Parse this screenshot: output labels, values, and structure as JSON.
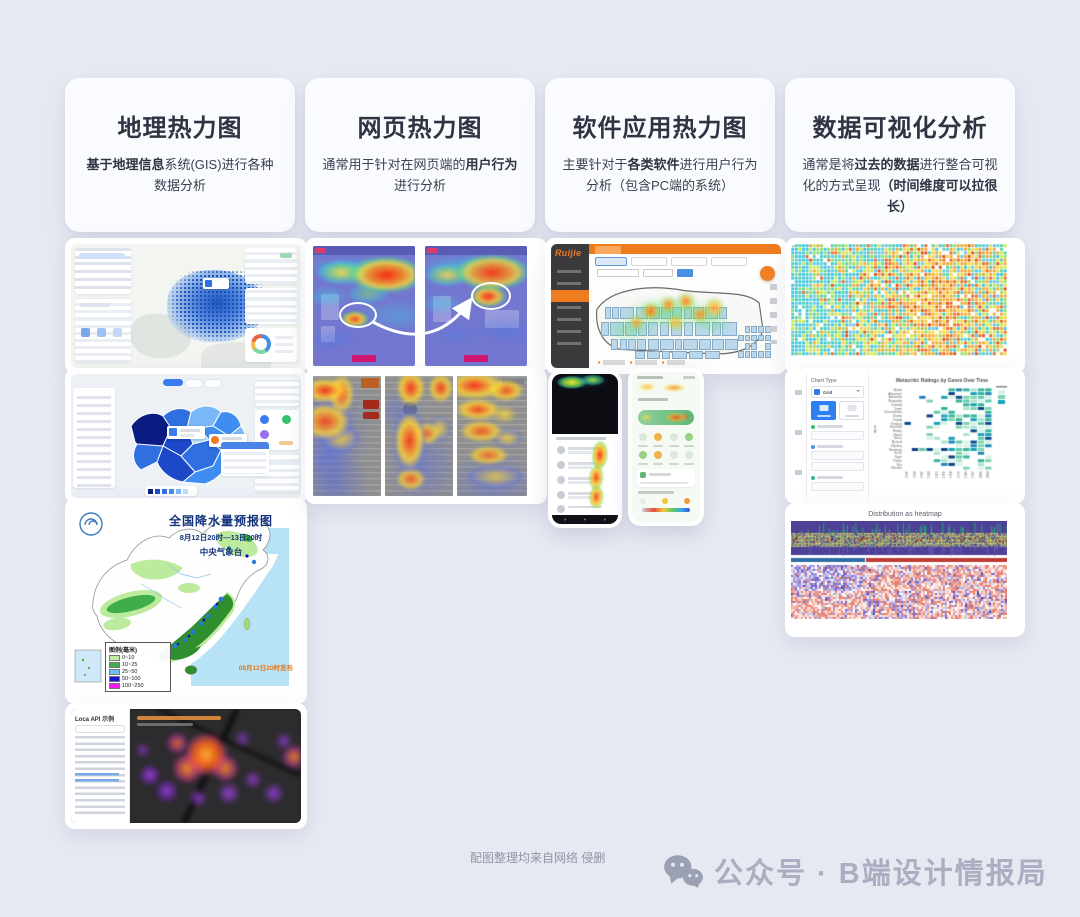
{
  "page": {
    "background": "#e7e9f2",
    "accent_orange": "#f07b1f",
    "accent_blue": "#2f6fe0",
    "panel_purple": "#7377cf"
  },
  "cards": [
    {
      "title": "地理热力图",
      "desc": [
        {
          "t": "基于地理信息",
          "b": true
        },
        {
          "t": "系统(GIS)进行各种数据分析",
          "b": false
        }
      ]
    },
    {
      "title": "网页热力图",
      "desc": [
        {
          "t": "通常用于针对在网页端的",
          "b": false
        },
        {
          "t": "用户行为",
          "b": true
        },
        {
          "t": "进行分析",
          "b": false
        }
      ]
    },
    {
      "title": "软件应用热力图",
      "desc": [
        {
          "t": "主要针对于",
          "b": false
        },
        {
          "t": "各类软件",
          "b": true
        },
        {
          "t": "进行用户行为分析（包含PC端的系统）",
          "b": false
        }
      ]
    },
    {
      "title": "数据可视化分析",
      "desc": [
        {
          "t": "通常是将",
          "b": false
        },
        {
          "t": "过去的数据",
          "b": true
        },
        {
          "t": "进行整合可视化的方式呈现",
          "b": false
        },
        {
          "t": "（时间维度可以拉很长）",
          "b": true
        }
      ]
    }
  ],
  "precip_map": {
    "title": "全国降水量预报图",
    "subtitle": "8月12日20时—13日20时",
    "org": "中央气象台",
    "publish": "08月12日20时发布",
    "legend_title": "图例(毫米)",
    "legend": [
      {
        "label": "0~10",
        "color": "#c4ec9e"
      },
      {
        "label": "10~25",
        "color": "#3fae4a"
      },
      {
        "label": "25~50",
        "color": "#6cc3f5"
      },
      {
        "label": "50~100",
        "color": "#1414d8"
      },
      {
        "label": "100~250",
        "color": "#f517f5"
      }
    ]
  },
  "loca": {
    "sidebar_title": "Loca API 示例"
  },
  "ruijie": {
    "logo": "Ruijie"
  },
  "bi_tool": {
    "panel_label": "Chart Type",
    "chart_type": "Grid",
    "chart": {
      "type": "heatmap",
      "title": "Metacritic Ratings by Genre Over Time",
      "ylabel": "genre",
      "genres": [
        "Action",
        "Adventure",
        "Animation",
        "Biography",
        "Comedy",
        "Crime",
        "Documentary",
        "Drama",
        "Family",
        "Fantasy",
        "Film-Noir",
        "History",
        "Horror",
        "Music",
        "Musical",
        "Mystery",
        "Romance",
        "Sci-Fi",
        "Sport",
        "Thriller",
        "War",
        "Western"
      ],
      "years": [
        "1920",
        "1928",
        "1936",
        "1944",
        "1952",
        "1960",
        "1968",
        "1976",
        "1984",
        "1992",
        "2000",
        "2008"
      ],
      "palette": [
        "#d8f2e6",
        "#a8e4cc",
        "#7fd4b0",
        "#5ec9ad",
        "#35b49a",
        "#17a2b8",
        "#1b86b8",
        "#0b4a8c"
      ],
      "standout_color": "#0a3f7d"
    }
  },
  "distribution": {
    "title": "Distribution as heatmap",
    "spectro_bg": "#4d4096",
    "bar_left": "#2e6da4",
    "bar_right": "#bf3b32",
    "purples": [
      "#6b5bc8",
      "#9a8fdc",
      "#c8c2ee"
    ],
    "salmons": [
      "#e8715c",
      "#f2a392",
      "#fad9d2"
    ]
  },
  "mosaic": {
    "cool": [
      "#35c4dd",
      "#4fd0a7",
      "#8edc62",
      "#c8e84a",
      "#5bc8e8"
    ],
    "warm": [
      "#f3d53c",
      "#f0a52e",
      "#e8641f",
      "#de4413"
    ]
  },
  "footer": {
    "credit": "配图整理均来自网络 侵删",
    "account": "公众号 · B端设计情报局"
  }
}
